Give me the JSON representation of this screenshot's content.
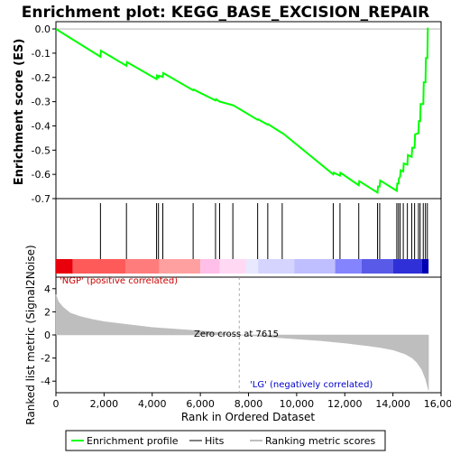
{
  "chart_data": {
    "type": "line",
    "title": "Enrichment plot: KEGG_BASE_EXCISION_REPAIR",
    "xlabel": "Rank in Ordered Dataset",
    "xlim": [
      0,
      16000
    ],
    "x_ticks": [
      0,
      2000,
      4000,
      6000,
      8000,
      10000,
      12000,
      14000,
      16000
    ],
    "x_tick_labels": [
      "0",
      "2,000",
      "4,000",
      "6,000",
      "8,000",
      "10,000",
      "12,000",
      "14,000",
      "16,000"
    ],
    "es_panel": {
      "ylabel": "Enrichment score (ES)",
      "ylim": [
        -0.7,
        0.03
      ],
      "y_ticks": [
        0.0,
        -0.1,
        -0.2,
        -0.3,
        -0.4,
        -0.5,
        -0.6,
        -0.7
      ],
      "y_tick_labels": [
        "0.0",
        "-0.1",
        "-0.2",
        "-0.3",
        "-0.4",
        "-0.5",
        "-0.6",
        "-0.7"
      ],
      "series_color": "#00ff00",
      "x": [
        0,
        1850,
        1870,
        2930,
        2950,
        4180,
        4200,
        4260,
        4280,
        4440,
        4460,
        5700,
        5720,
        6630,
        6650,
        6800,
        6820,
        7350,
        7370,
        8380,
        8400,
        8800,
        8820,
        9400,
        9420,
        11520,
        11540,
        11800,
        11820,
        12580,
        12600,
        13360,
        13380,
        13450,
        13470,
        14160,
        14180,
        14230,
        14250,
        14300,
        14320,
        14430,
        14450,
        14600,
        14620,
        14780,
        14800,
        14900,
        14920,
        15060,
        15080,
        15130,
        15150,
        15260,
        15280,
        15350,
        15370,
        15430,
        15450
      ],
      "y": [
        0.0,
        -0.115,
        -0.09,
        -0.152,
        -0.137,
        -0.207,
        -0.193,
        -0.2,
        -0.193,
        -0.198,
        -0.182,
        -0.253,
        -0.25,
        -0.295,
        -0.29,
        -0.3,
        -0.3,
        -0.315,
        -0.315,
        -0.375,
        -0.373,
        -0.395,
        -0.393,
        -0.43,
        -0.43,
        -0.6,
        -0.593,
        -0.605,
        -0.593,
        -0.645,
        -0.628,
        -0.675,
        -0.65,
        -0.65,
        -0.625,
        -0.668,
        -0.638,
        -0.638,
        -0.617,
        -0.61,
        -0.583,
        -0.588,
        -0.555,
        -0.56,
        -0.52,
        -0.528,
        -0.49,
        -0.49,
        -0.435,
        -0.43,
        -0.38,
        -0.38,
        -0.31,
        -0.31,
        -0.22,
        -0.22,
        -0.12,
        -0.12,
        0.005
      ]
    },
    "hits": [
      1850,
      2930,
      4180,
      4260,
      4440,
      5700,
      6630,
      6800,
      7350,
      8380,
      8800,
      9400,
      11520,
      11800,
      12580,
      13360,
      13450,
      14160,
      14230,
      14300,
      14430,
      14600,
      14780,
      14900,
      15060,
      15130,
      15260,
      15350,
      15430
    ],
    "ranked_metric_panel": {
      "ylabel": "Ranked list metric (Signal2Noise)",
      "ylim": [
        -5,
        5
      ],
      "y_ticks": [
        4,
        2,
        0,
        -2,
        -4
      ],
      "y_tick_labels": [
        "4",
        "2",
        "0",
        "-2",
        "-4"
      ],
      "fill_color": "#bebebe",
      "x": [
        0,
        100,
        300,
        600,
        1000,
        1500,
        2000,
        3000,
        4000,
        5000,
        6000,
        6800,
        7000,
        7615,
        8000,
        9000,
        10000,
        11000,
        12000,
        13000,
        13500,
        14000,
        14500,
        14800,
        15000,
        15200,
        15350,
        15480
      ],
      "y": [
        3.5,
        2.9,
        2.4,
        1.9,
        1.6,
        1.35,
        1.15,
        0.9,
        0.65,
        0.5,
        0.35,
        0.2,
        0.12,
        0.0,
        -0.05,
        -0.2,
        -0.35,
        -0.5,
        -0.7,
        -0.95,
        -1.1,
        -1.3,
        -1.65,
        -2.0,
        -2.4,
        -3.0,
        -3.8,
        -4.8
      ],
      "positive_label": "'NGP' (positive correlated)",
      "negative_label": "'LG' (negatively correlated)",
      "zero_cross_label": "Zero cross at 7615",
      "zero_cross_x": 7615
    },
    "gradient_bar": {
      "segments": [
        {
          "x0": 0,
          "x1": 700,
          "color": "#e8000a"
        },
        {
          "x0": 700,
          "x1": 2900,
          "color": "#ff5a5a"
        },
        {
          "x0": 2900,
          "x1": 4300,
          "color": "#ff7c7c"
        },
        {
          "x0": 4300,
          "x1": 6000,
          "color": "#ffa0a0"
        },
        {
          "x0": 6000,
          "x1": 6800,
          "color": "#ffbfe8"
        },
        {
          "x0": 6800,
          "x1": 7900,
          "color": "#ffd8f4"
        },
        {
          "x0": 7900,
          "x1": 8400,
          "color": "#e8e8ff"
        },
        {
          "x0": 8400,
          "x1": 9900,
          "color": "#d4d4ff"
        },
        {
          "x0": 9900,
          "x1": 11600,
          "color": "#bfbfff"
        },
        {
          "x0": 11600,
          "x1": 12700,
          "color": "#8484ff"
        },
        {
          "x0": 12700,
          "x1": 14000,
          "color": "#5a5ae8"
        },
        {
          "x0": 14000,
          "x1": 15200,
          "color": "#3030d8"
        },
        {
          "x0": 15200,
          "x1": 15480,
          "color": "#0000b4"
        }
      ]
    },
    "legend": {
      "placement": "bottom",
      "entries": [
        {
          "label": "Enrichment profile",
          "color": "#00ff00"
        },
        {
          "label": "Hits",
          "color": "#000000"
        },
        {
          "label": "Ranking metric scores",
          "color": "#bebebe"
        }
      ]
    }
  }
}
